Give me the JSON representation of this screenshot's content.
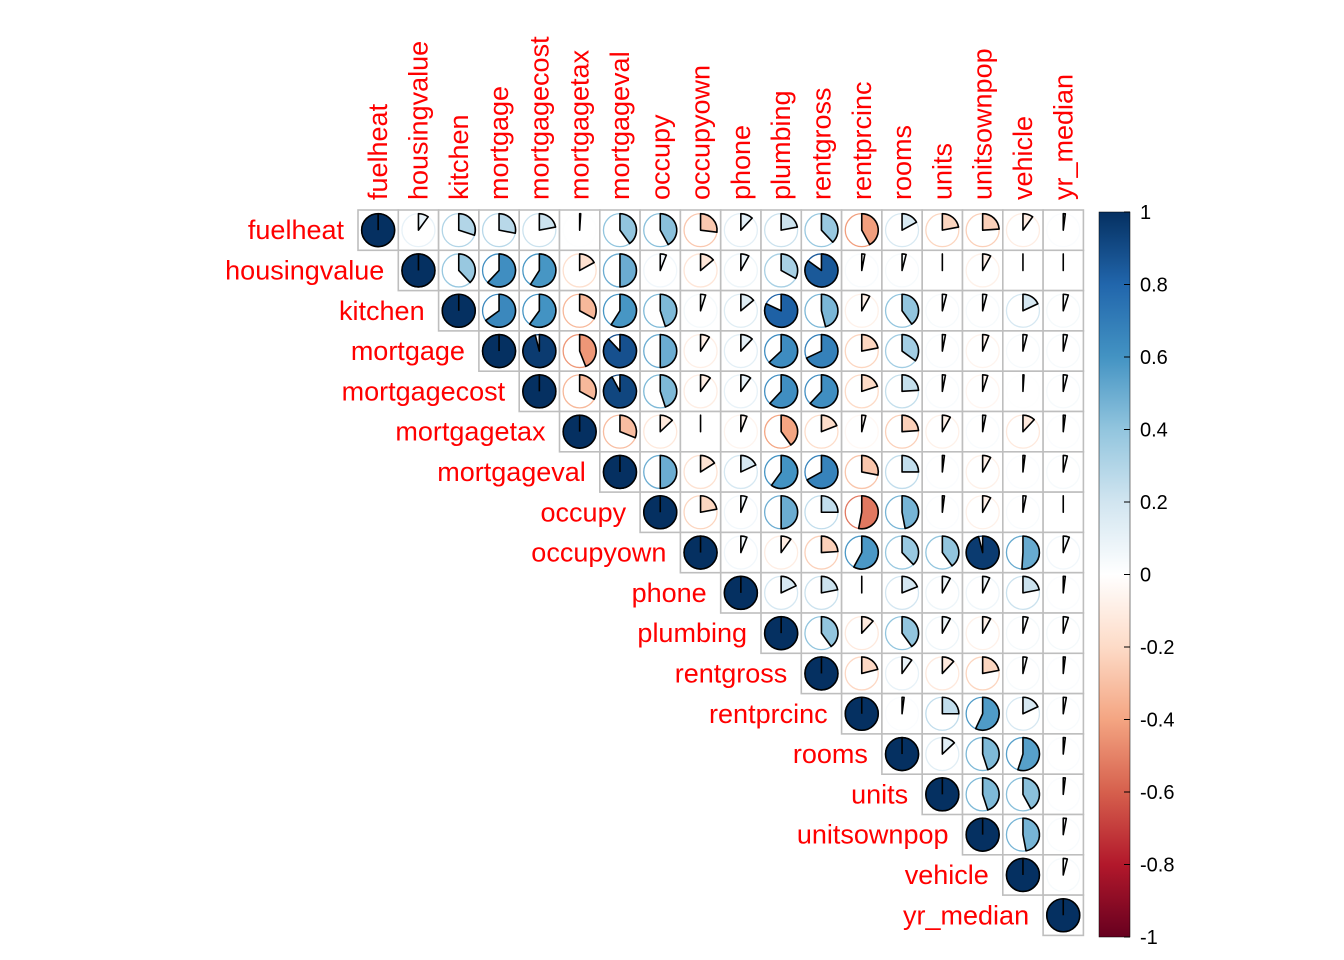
{
  "chart_data": {
    "type": "heatmap",
    "variables": [
      "fuelheat",
      "housingvalue",
      "kitchen",
      "mortgage",
      "mortgagecost",
      "mortgagetax",
      "mortgageval",
      "occupy",
      "occupyown",
      "phone",
      "plumbing",
      "rentgross",
      "rentprcinc",
      "rooms",
      "units",
      "unitsownpop",
      "vehicle",
      "yr_median"
    ],
    "matrix": [
      [
        1.0,
        0.1,
        0.3,
        0.28,
        0.22,
        0.01,
        0.4,
        0.42,
        -0.27,
        0.12,
        0.22,
        0.38,
        -0.42,
        0.17,
        -0.22,
        -0.24,
        -0.1,
        0.02
      ],
      [
        0.1,
        1.0,
        0.38,
        0.62,
        0.59,
        -0.17,
        0.5,
        0.06,
        -0.14,
        0.08,
        0.33,
        0.85,
        0.03,
        0.04,
        0.0,
        -0.08,
        0.0,
        0.0
      ],
      [
        0.3,
        0.38,
        1.0,
        0.65,
        0.6,
        -0.33,
        0.59,
        0.45,
        0.05,
        0.14,
        0.82,
        0.46,
        -0.08,
        0.4,
        0.04,
        0.04,
        0.18,
        0.05
      ],
      [
        0.28,
        0.62,
        0.65,
        1.0,
        0.96,
        -0.44,
        0.88,
        0.5,
        -0.09,
        0.12,
        0.63,
        0.68,
        -0.22,
        0.35,
        0.03,
        -0.06,
        0.04,
        0.04
      ],
      [
        0.22,
        0.59,
        0.6,
        0.96,
        1.0,
        -0.33,
        0.92,
        0.45,
        -0.1,
        0.1,
        0.62,
        0.62,
        -0.2,
        0.24,
        0.03,
        -0.05,
        0.01,
        0.04
      ],
      [
        0.01,
        -0.17,
        -0.33,
        -0.44,
        -0.33,
        1.0,
        -0.31,
        -0.13,
        0.0,
        -0.06,
        -0.4,
        -0.19,
        -0.04,
        -0.24,
        -0.08,
        0.03,
        -0.12,
        0.02
      ],
      [
        0.4,
        0.5,
        0.59,
        0.88,
        0.92,
        -0.31,
        1.0,
        0.5,
        -0.16,
        0.18,
        0.6,
        0.67,
        -0.28,
        0.25,
        0.02,
        -0.08,
        0.02,
        0.04
      ],
      [
        0.42,
        0.06,
        0.45,
        0.5,
        0.45,
        -0.13,
        0.5,
        1.0,
        -0.22,
        0.06,
        0.5,
        0.25,
        -0.53,
        0.47,
        0.02,
        -0.08,
        0.03,
        0.0
      ],
      [
        -0.27,
        -0.14,
        0.05,
        -0.09,
        -0.1,
        0.0,
        -0.16,
        -0.22,
        1.0,
        0.06,
        -0.1,
        -0.24,
        0.58,
        0.38,
        0.4,
        0.96,
        0.51,
        0.06
      ],
      [
        0.12,
        0.08,
        0.14,
        0.12,
        0.1,
        -0.06,
        0.18,
        0.06,
        0.06,
        1.0,
        0.18,
        0.22,
        0.0,
        0.19,
        0.08,
        0.07,
        0.22,
        0.02
      ],
      [
        0.22,
        0.33,
        0.82,
        0.63,
        0.62,
        -0.4,
        0.6,
        0.5,
        -0.1,
        0.18,
        1.0,
        0.4,
        -0.12,
        0.4,
        0.08,
        -0.08,
        0.05,
        0.05
      ],
      [
        0.38,
        0.85,
        0.46,
        0.68,
        0.62,
        -0.19,
        0.67,
        0.25,
        -0.24,
        0.22,
        0.4,
        1.0,
        -0.21,
        0.1,
        -0.12,
        -0.22,
        0.04,
        0.02
      ],
      [
        -0.42,
        0.03,
        -0.08,
        -0.22,
        -0.2,
        -0.04,
        -0.28,
        -0.53,
        0.58,
        0.0,
        -0.12,
        -0.21,
        1.0,
        0.02,
        0.25,
        0.57,
        0.18,
        0.03
      ],
      [
        0.17,
        0.04,
        0.4,
        0.35,
        0.24,
        -0.24,
        0.25,
        0.47,
        0.38,
        0.19,
        0.4,
        0.1,
        0.02,
        1.0,
        0.13,
        0.45,
        0.55,
        0.02
      ],
      [
        -0.22,
        0.0,
        0.04,
        0.03,
        0.03,
        -0.08,
        0.02,
        0.02,
        0.4,
        0.08,
        0.08,
        -0.12,
        0.25,
        0.13,
        1.0,
        0.45,
        0.42,
        0.02
      ],
      [
        -0.24,
        -0.08,
        0.04,
        -0.06,
        -0.05,
        0.03,
        -0.08,
        -0.08,
        0.96,
        0.07,
        -0.08,
        -0.22,
        0.57,
        0.45,
        0.45,
        1.0,
        0.47,
        0.03
      ],
      [
        -0.1,
        0.0,
        0.18,
        0.04,
        0.01,
        -0.12,
        0.02,
        0.03,
        0.51,
        0.22,
        0.05,
        0.04,
        0.18,
        0.55,
        0.42,
        0.47,
        1.0,
        0.04
      ],
      [
        0.02,
        0.0,
        0.05,
        0.04,
        0.04,
        0.02,
        0.04,
        0.0,
        0.06,
        0.02,
        0.05,
        0.02,
        0.03,
        0.02,
        0.02,
        0.03,
        0.04,
        1.0
      ]
    ],
    "display": "upper-triangle pie glyphs",
    "colorbar": {
      "range": [
        -1,
        1
      ],
      "ticks": [
        "1",
        "0.8",
        "0.6",
        "0.4",
        "0.2",
        "0",
        "-0.2",
        "-0.4",
        "-0.6",
        "-0.8",
        "-1"
      ],
      "colors": [
        "#67001F",
        "#B2182B",
        "#D6604D",
        "#F4A582",
        "#FDDBC7",
        "#FFFFFF",
        "#D1E5F0",
        "#92C5DE",
        "#4393C3",
        "#2166AC",
        "#053061"
      ]
    },
    "label_color": "#FF0000",
    "grid_color": "#BEBEBE"
  }
}
